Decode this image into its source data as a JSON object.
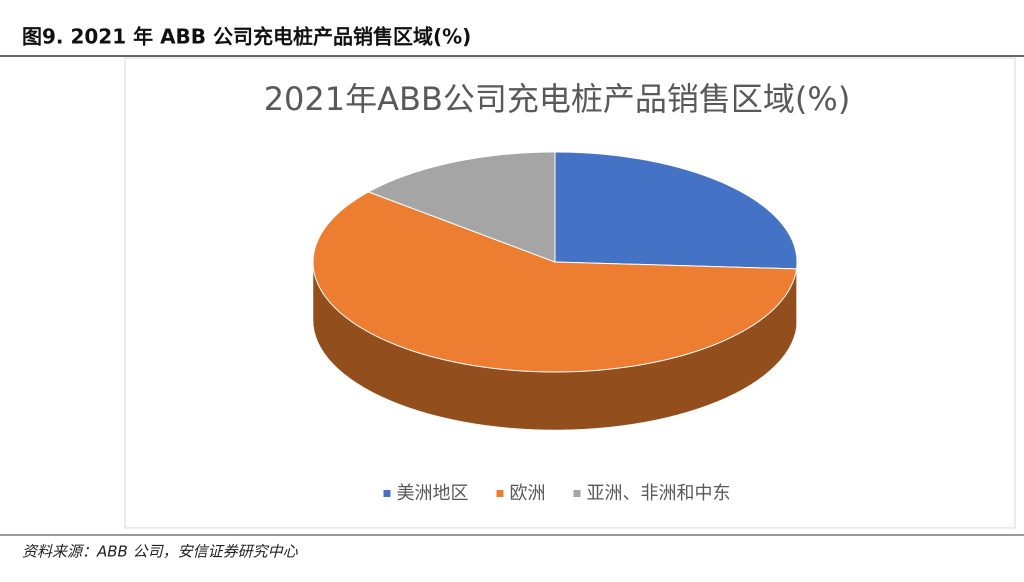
{
  "header": {
    "title": "图9. 2021 年 ABB 公司充电桩产品销售区域(%)"
  },
  "chart_data": {
    "type": "pie",
    "title": "2021年ABB公司充电桩产品销售区域(%)",
    "categories": [
      "美洲地区",
      "欧洲",
      "亚洲、非洲和中东"
    ],
    "values": [
      26,
      60,
      14
    ],
    "colors": [
      "#4472c4",
      "#ed7d31",
      "#a5a5a5"
    ],
    "legend": "bottom"
  },
  "footer": {
    "source": "资料来源：ABB 公司，安信证券研究中心"
  }
}
